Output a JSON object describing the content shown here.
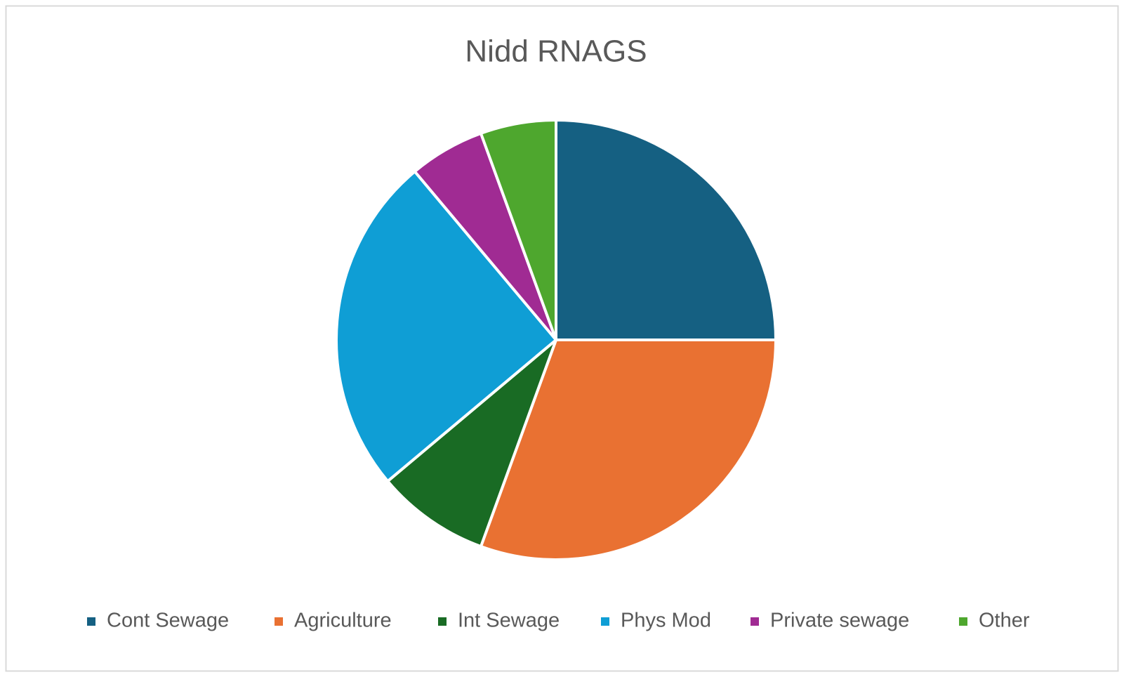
{
  "chart_data": {
    "type": "pie",
    "title": "Nidd RNAGS",
    "categories": [
      "Cont Sewage",
      "Agriculture",
      "Int Sewage",
      "Phys Mod",
      "Private sewage",
      "Other"
    ],
    "values": [
      9,
      11,
      3,
      9,
      2,
      2
    ],
    "colors": [
      "#156082",
      "#e97132",
      "#196b24",
      "#0f9ed5",
      "#a02b93",
      "#4ea72e"
    ],
    "legend": "bottom"
  }
}
